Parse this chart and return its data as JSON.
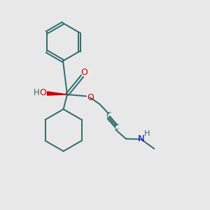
{
  "background_color": "#e8e8e8",
  "bond_color": "#2d6b6b",
  "oxygen_color": "#cc0000",
  "nitrogen_color": "#0000cc",
  "figsize": [
    3.0,
    3.0
  ],
  "dpi": 100,
  "xlim": [
    0,
    10
  ],
  "ylim": [
    0,
    10
  ]
}
